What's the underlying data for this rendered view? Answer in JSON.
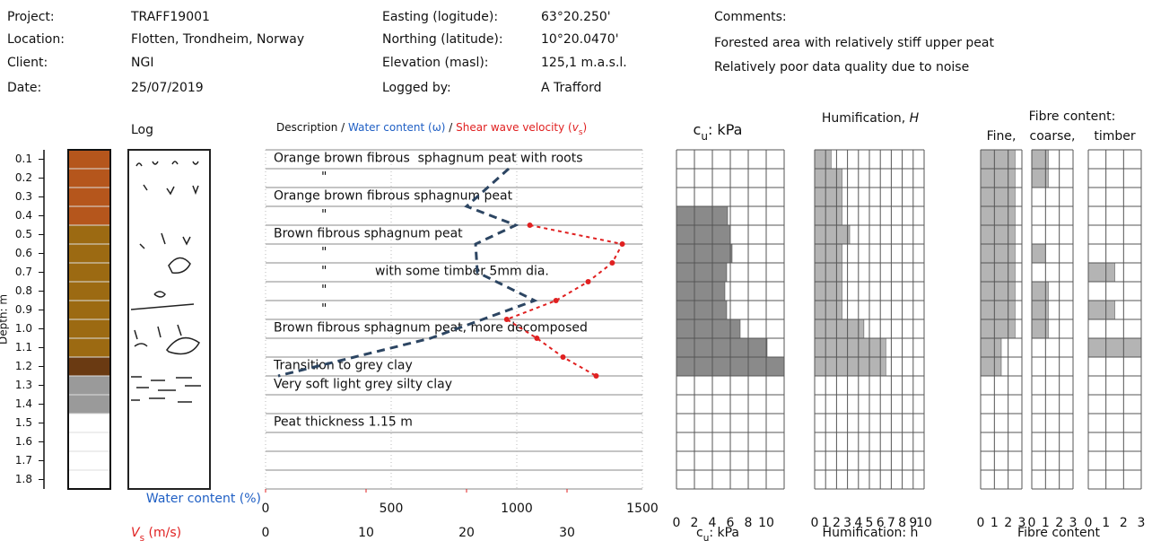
{
  "header": {
    "fields": [
      {
        "label": "Project:",
        "value": "TRAFF19001"
      },
      {
        "label": "Location:",
        "value": "Flotten, Trondheim, Norway"
      },
      {
        "label": "Client:",
        "value": "NGI"
      },
      {
        "label": "Date:",
        "value": "25/07/2019"
      },
      {
        "label": "Easting (logitude):",
        "value": "63°20.250'"
      },
      {
        "label": "Northing (latitude):",
        "value": "10°20.0470'"
      },
      {
        "label": "Elevation (masl):",
        "value": "125,1 m.a.s.l."
      },
      {
        "label": "Logged by:",
        "value": "A Trafford"
      }
    ],
    "comments": [
      "Comments:",
      "Forested area with relatively stiff upper peat",
      "Relatively poor data quality due to noise"
    ]
  },
  "chart_data": [
    {
      "type": "log",
      "title": "Log",
      "ylabel": "Depth: m",
      "ylim": [
        0.05,
        1.85
      ],
      "yticks": [
        0.1,
        0.2,
        0.3,
        0.4,
        0.5,
        0.6,
        0.7,
        0.8,
        0.9,
        {
          "value": 1,
          "label": "1.0"
        },
        1.1,
        1.2,
        1.3,
        1.4,
        1.5,
        1.6,
        1.7,
        1.8
      ],
      "layers": [
        {
          "top": 0.05,
          "bottom": 0.45,
          "color": "#b5561c"
        },
        {
          "top": 0.45,
          "bottom": 1.15,
          "color": "#9c6a12"
        },
        {
          "top": 1.15,
          "bottom": 1.25,
          "color": "#6a3a12"
        },
        {
          "top": 1.25,
          "bottom": 1.45,
          "color": "#9a9a9a"
        }
      ]
    },
    {
      "type": "profile",
      "title_parts": [
        {
          "text": "Description / ",
          "color": "#111111"
        },
        {
          "text": "Water content (ω)",
          "color": "#1f5fc4"
        },
        {
          "text": " / ",
          "color": "#111111"
        },
        {
          "text": "Shear wave velocity (",
          "color": "#e02020"
        },
        {
          "text": "v",
          "color": "#e02020",
          "italic": true
        },
        {
          "text": "s",
          "color": "#e02020",
          "sub": true
        },
        {
          "text": ")",
          "color": "#e02020"
        }
      ],
      "xlabel_parts": [
        {
          "text": "Water content (%)",
          "color": "#1f5fc4"
        }
      ],
      "xlim": [
        0,
        1500
      ],
      "xticks": [
        0,
        500,
        1000,
        1500
      ],
      "xcolor": "#1f5fc4",
      "x2label_parts": [
        {
          "text": "V",
          "color": "#e02020",
          "italic": true
        },
        {
          "text": "s",
          "color": "#e02020",
          "sub": true
        },
        {
          "text": " (m/s)",
          "color": "#e02020"
        }
      ],
      "x2lim": [
        0,
        37.5
      ],
      "x2ticks": [
        0,
        10,
        20,
        30
      ],
      "x2color": "#e02020",
      "grid": true,
      "series": [
        {
          "color": "#2c4562",
          "depths": [
            0.15,
            0.35,
            0.45,
            0.55,
            0.7,
            0.85,
            1.05,
            1.25
          ],
          "values": [
            968,
            800,
            996,
            836,
            843,
            1071,
            657,
            50
          ]
        },
        {
          "color": "#e02020",
          "axis": "x2",
          "depths": [
            0.45,
            0.55,
            0.65,
            0.75,
            0.85,
            0.95,
            1.05,
            1.15,
            1.25
          ],
          "values": [
            26.3,
            35.5,
            34.5,
            32.1,
            28.9,
            24.0,
            27.0,
            29.6,
            32.9
          ]
        }
      ],
      "annotations": [
        {
          "text": "Orange brown fibrous  sphagnum peat with roots",
          "depth": 0.1
        },
        {
          "text": "\"",
          "depth": 0.2
        },
        {
          "text": "Orange brown fibrous sphagnum peat",
          "depth": 0.3
        },
        {
          "text": "\"",
          "depth": 0.4
        },
        {
          "text": "Brown fibrous sphagnum peat",
          "depth": 0.5
        },
        {
          "text": "\"",
          "depth": 0.6
        },
        {
          "text": "\"",
          "depth": 0.7
        },
        {
          "text": "with some timber 5mm dia.",
          "depth": 0.7
        },
        {
          "text": "\"",
          "depth": 0.8
        },
        {
          "text": "\"",
          "depth": 0.9
        },
        {
          "text": "Brown fibrous sphagnum peat, more decomposed",
          "depth": 1.0
        },
        {
          "text": "Transition to grey clay",
          "depth": 1.2
        },
        {
          "text": "Very soft light grey silty clay",
          "depth": 1.3
        },
        {
          "text": "Peat thickness 1.15 m",
          "depth": 1.5
        }
      ]
    },
    {
      "type": "bars",
      "title_parts": [
        {
          "text": "c"
        },
        {
          "text": "u",
          "sub": true
        },
        {
          "text": ": kPa"
        }
      ],
      "xlabel_parts": [
        {
          "text": "c"
        },
        {
          "text": "u",
          "sub": true
        },
        {
          "text": ": kPa"
        }
      ],
      "xlim": [
        0,
        12
      ],
      "xticks": [
        0,
        2,
        4,
        6,
        8,
        10
      ],
      "series": [
        {
          "color": "#8a8a8a",
          "depths": [
            0.4,
            0.5,
            0.6,
            0.7,
            0.8,
            0.9,
            1.0,
            1.1,
            1.2
          ],
          "values": [
            5.7,
            6.0,
            6.2,
            5.6,
            5.4,
            5.6,
            7.1,
            10.1,
            12.0
          ]
        }
      ]
    },
    {
      "type": "bars",
      "title_parts": [
        {
          "text": "Humification, "
        },
        {
          "text": "H",
          "italic": true
        }
      ],
      "xlabel_parts": [
        {
          "text": "Humification: h"
        }
      ],
      "xlim": [
        0,
        10
      ],
      "xticks": [
        0,
        1,
        2,
        3,
        4,
        5,
        6,
        7,
        8,
        9,
        10
      ],
      "series": [
        {
          "color": "#b4b4b4",
          "depths": [
            0.1,
            0.2,
            0.3,
            0.4,
            0.5,
            0.6,
            0.7,
            0.8,
            0.9,
            1.0,
            1.1,
            1.2
          ],
          "values": [
            1.5,
            2.5,
            2.5,
            2.5,
            3.2,
            2.5,
            2.5,
            2.5,
            2.5,
            4.5,
            6.5,
            6.5
          ]
        }
      ]
    },
    {
      "type": "bars",
      "title_parts": [
        {
          "text": "Fibre content:"
        }
      ],
      "xlabel_parts": [
        {
          "text": "Fibre content"
        }
      ],
      "xlim": [
        0,
        3
      ],
      "xticks": [
        0,
        1,
        2,
        3
      ],
      "series": [
        {
          "name": "Fine,",
          "color": "#b4b4b4",
          "depths": [
            0.1,
            0.2,
            0.3,
            0.4,
            0.5,
            0.6,
            0.7,
            0.8,
            0.9,
            1.0,
            1.1,
            1.2
          ],
          "values": [
            2.5,
            2.5,
            2.5,
            2.5,
            2.5,
            2.5,
            2.5,
            2.5,
            2.5,
            2.5,
            1.5,
            1.5
          ]
        },
        {
          "name": "coarse,",
          "color": "#b4b4b4",
          "depths": [
            0.1,
            0.2,
            0.6,
            0.8,
            0.9,
            1.0
          ],
          "values": [
            1.2,
            1.2,
            1.0,
            1.2,
            1.2,
            1.2
          ]
        },
        {
          "name": "timber",
          "color": "#b4b4b4",
          "depths": [
            0.7,
            0.9,
            1.1
          ],
          "values": [
            1.5,
            1.5,
            3
          ]
        }
      ]
    }
  ]
}
